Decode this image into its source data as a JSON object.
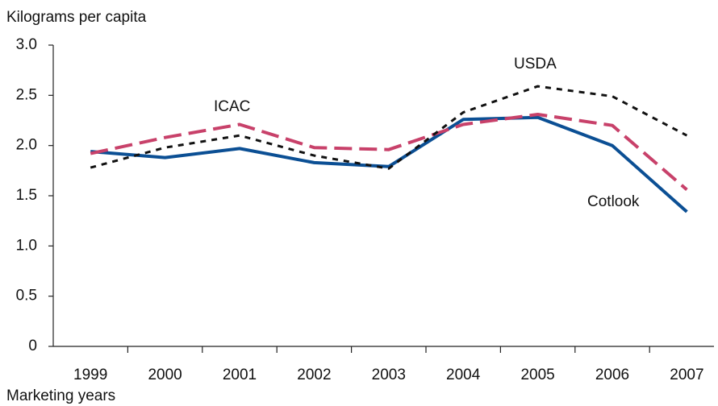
{
  "chart_data": {
    "type": "line",
    "title": "Kilograms per capita",
    "x_label": "Marketing years",
    "categories": [
      "1999",
      "2000",
      "2001",
      "2002",
      "2003",
      "2004",
      "2005",
      "2006",
      "2007"
    ],
    "series": [
      {
        "name": "Cotlook",
        "color": "#0b4f94",
        "style": "solid",
        "values": [
          1.94,
          1.88,
          1.97,
          1.83,
          1.79,
          2.26,
          2.28,
          2.0,
          1.34
        ]
      },
      {
        "name": "ICAC",
        "color": "#c8416a",
        "style": "dashed",
        "values": [
          1.92,
          2.08,
          2.21,
          1.98,
          1.96,
          2.21,
          2.31,
          2.2,
          1.56
        ]
      },
      {
        "name": "USDA",
        "color": "#111111",
        "style": "dotted",
        "values": [
          1.78,
          1.98,
          2.1,
          1.9,
          1.77,
          2.33,
          2.59,
          2.49,
          2.1
        ]
      }
    ],
    "ylim": [
      0,
      3
    ],
    "yticks": [
      0,
      {
        "value": 0.5,
        "label": "0.5"
      },
      {
        "value": 1,
        "label": "1.0"
      },
      {
        "value": 1.5,
        "label": "1.5"
      },
      {
        "value": 2,
        "label": "2.0"
      },
      {
        "value": 2.5,
        "label": "2.5"
      },
      {
        "value": 3,
        "label": "3.0"
      }
    ],
    "grid": false
  }
}
